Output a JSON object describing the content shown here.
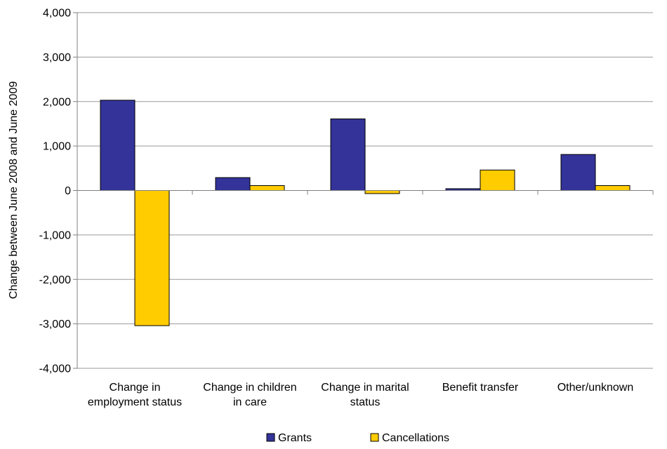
{
  "chart_data": {
    "type": "bar",
    "title": "",
    "xlabel": "",
    "ylabel": "Change between June 2008 and June 2009",
    "ylim": [
      -4000,
      4000
    ],
    "ytick_step": 1000,
    "ytick_labels": [
      "4,000",
      "3,000",
      "2,000",
      "1,000",
      "0",
      "-1,000",
      "-2,000",
      "-3,000",
      "-4,000"
    ],
    "grid": true,
    "legend_position": "bottom",
    "categories": [
      [
        "Change in",
        "employment status"
      ],
      [
        "Change in children",
        "in care"
      ],
      [
        "Change in marital",
        "status"
      ],
      [
        "Benefit transfer"
      ],
      [
        "Other/unknown"
      ]
    ],
    "series": [
      {
        "name": "Grants",
        "color": "#333399",
        "values": [
          2030,
          290,
          1610,
          40,
          810
        ]
      },
      {
        "name": "Cancellations",
        "color": "#FFCC00",
        "values": [
          -3040,
          110,
          -70,
          460,
          110
        ]
      }
    ]
  }
}
